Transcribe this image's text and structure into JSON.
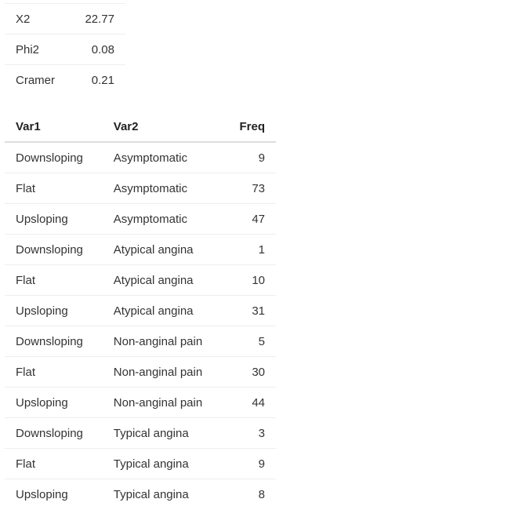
{
  "stats": {
    "rows": [
      {
        "label": "X2",
        "value": "22.77"
      },
      {
        "label": "Phi2",
        "value": "0.08"
      },
      {
        "label": "Cramer",
        "value": "0.21"
      }
    ]
  },
  "freq_table": {
    "headers": {
      "var1": "Var1",
      "var2": "Var2",
      "freq": "Freq"
    },
    "rows": [
      {
        "var1": "Downsloping",
        "var2": "Asymptomatic",
        "freq": "9"
      },
      {
        "var1": "Flat",
        "var2": "Asymptomatic",
        "freq": "73"
      },
      {
        "var1": "Upsloping",
        "var2": "Asymptomatic",
        "freq": "47"
      },
      {
        "var1": "Downsloping",
        "var2": "Atypical angina",
        "freq": "1"
      },
      {
        "var1": "Flat",
        "var2": "Atypical angina",
        "freq": "10"
      },
      {
        "var1": "Upsloping",
        "var2": "Atypical angina",
        "freq": "31"
      },
      {
        "var1": "Downsloping",
        "var2": "Non-anginal pain",
        "freq": "5"
      },
      {
        "var1": "Flat",
        "var2": "Non-anginal pain",
        "freq": "30"
      },
      {
        "var1": "Upsloping",
        "var2": "Non-anginal pain",
        "freq": "44"
      },
      {
        "var1": "Downsloping",
        "var2": "Typical angina",
        "freq": "3"
      },
      {
        "var1": "Flat",
        "var2": "Typical angina",
        "freq": "9"
      },
      {
        "var1": "Upsloping",
        "var2": "Typical angina",
        "freq": "8"
      }
    ]
  }
}
